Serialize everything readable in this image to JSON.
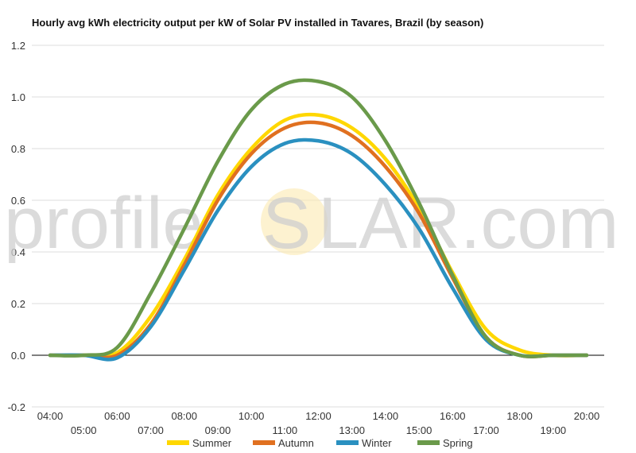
{
  "title": "Hourly avg kWh electricity output per kW of Solar PV installed in Tavares, Brazil (by season)",
  "watermark": {
    "left": "profile",
    "center": "S",
    "right": "LAR.com"
  },
  "colors": {
    "Summer": "#FFD700",
    "Autumn": "#E07020",
    "Winter": "#2A90C0",
    "Spring": "#6A9A4A",
    "grid": "#dddddd",
    "zero": "#000000"
  },
  "chart_data": {
    "type": "line",
    "title": "Hourly avg kWh electricity output per kW of Solar PV installed in Tavares, Brazil (by season)",
    "xlabel": "",
    "ylabel": "",
    "ylim": [
      -0.2,
      1.2
    ],
    "yticks": [
      -0.2,
      0.0,
      0.2,
      0.4,
      0.6,
      0.8,
      1.0,
      1.2
    ],
    "grid": true,
    "legend": "bottom",
    "x": [
      "04:00",
      "05:00",
      "06:00",
      "07:00",
      "08:00",
      "09:00",
      "10:00",
      "11:00",
      "12:00",
      "13:00",
      "14:00",
      "15:00",
      "16:00",
      "17:00",
      "18:00",
      "19:00",
      "20:00"
    ],
    "series": [
      {
        "name": "Summer",
        "values": [
          0,
          0,
          0.01,
          0.15,
          0.37,
          0.62,
          0.8,
          0.91,
          0.93,
          0.88,
          0.76,
          0.57,
          0.32,
          0.1,
          0.02,
          0,
          0
        ]
      },
      {
        "name": "Autumn",
        "values": [
          0,
          0,
          0,
          0.12,
          0.35,
          0.6,
          0.78,
          0.88,
          0.9,
          0.85,
          0.73,
          0.55,
          0.3,
          0.07,
          0,
          0,
          0
        ]
      },
      {
        "name": "Winter",
        "values": [
          0,
          0,
          -0.01,
          0.11,
          0.33,
          0.56,
          0.73,
          0.82,
          0.83,
          0.78,
          0.66,
          0.49,
          0.26,
          0.06,
          0,
          0,
          0
        ]
      },
      {
        "name": "Spring",
        "values": [
          0,
          0,
          0.03,
          0.24,
          0.49,
          0.75,
          0.95,
          1.05,
          1.06,
          1.0,
          0.83,
          0.59,
          0.31,
          0.07,
          0,
          0,
          0
        ]
      }
    ]
  }
}
